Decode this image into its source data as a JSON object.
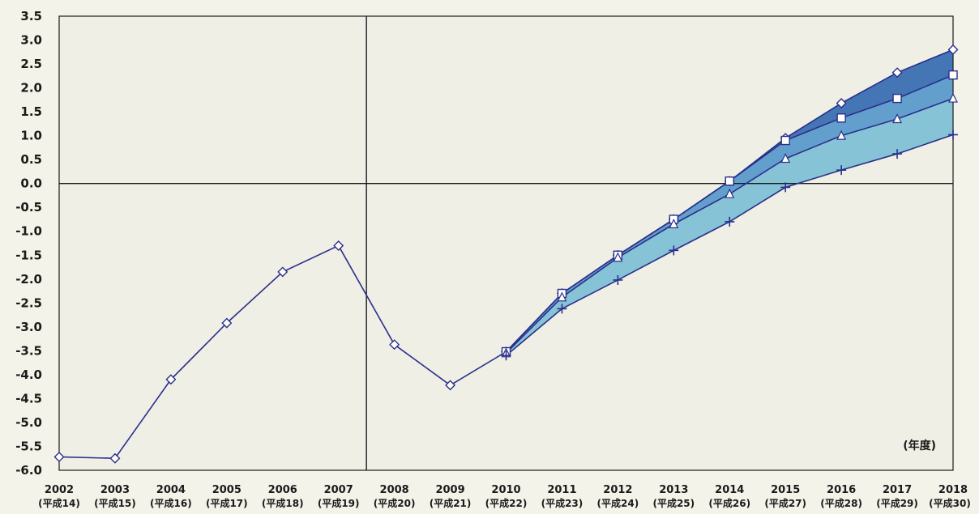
{
  "chart_data": {
    "type": "line",
    "title": "",
    "xlabel": "",
    "ylabel": "",
    "unit_label": "(年度)",
    "ylim": [
      -6.0,
      3.5
    ],
    "yticks": [
      "3.5",
      "3.0",
      "2.5",
      "2.0",
      "1.5",
      "1.0",
      "0.5",
      "0.0",
      "-0.5",
      "-1.0",
      "-1.5",
      "-2.0",
      "-2.5",
      "-3.0",
      "-3.5",
      "-4.0",
      "-4.5",
      "-5.0",
      "-5.5",
      "-6.0"
    ],
    "categories": [
      "2002",
      "2003",
      "2004",
      "2005",
      "2006",
      "2007",
      "2008",
      "2009",
      "2010",
      "2011",
      "2012",
      "2013",
      "2014",
      "2015",
      "2016",
      "2017",
      "2018"
    ],
    "sub_labels": [
      "(平成14)",
      "(平成15)",
      "(平成16)",
      "(平成17)",
      "(平成18)",
      "(平成19)",
      "(平成20)",
      "(平成21)",
      "(平成22)",
      "(平成23)",
      "(平成24)",
      "(平成25)",
      "(平成26)",
      "(平成27)",
      "(平成28)",
      "(平成29)",
      "(平成30)"
    ],
    "vertical_divider_after": "2007",
    "grid": false,
    "series": [
      {
        "marker": "diamond",
        "values": [
          -5.72,
          -5.75,
          -4.1,
          -2.92,
          -1.85,
          -1.3,
          -3.37,
          -4.22,
          -3.52,
          -2.3,
          -1.5,
          -0.75,
          0.05,
          0.95,
          1.68,
          2.32,
          2.8
        ]
      },
      {
        "marker": "square",
        "values": [
          null,
          null,
          null,
          null,
          null,
          null,
          null,
          null,
          -3.52,
          -2.3,
          -1.5,
          -0.75,
          0.05,
          0.9,
          1.37,
          1.78,
          2.27
        ]
      },
      {
        "marker": "triangle",
        "values": [
          null,
          null,
          null,
          null,
          null,
          null,
          null,
          null,
          -3.55,
          -2.38,
          -1.55,
          -0.85,
          -0.22,
          0.52,
          1.0,
          1.35,
          1.78
        ]
      },
      {
        "marker": "plus",
        "values": [
          null,
          null,
          null,
          null,
          null,
          null,
          null,
          null,
          -3.6,
          -2.62,
          -2.02,
          -1.4,
          -0.8,
          -0.08,
          0.28,
          0.62,
          1.02
        ]
      }
    ],
    "band_colors": [
      "#3a6eb2",
      "#5a9acb",
      "#7fc0d6"
    ],
    "line_color": "#2b2f8a",
    "plot_background": "#efefe6",
    "axis_color": "#1a1a1a"
  }
}
